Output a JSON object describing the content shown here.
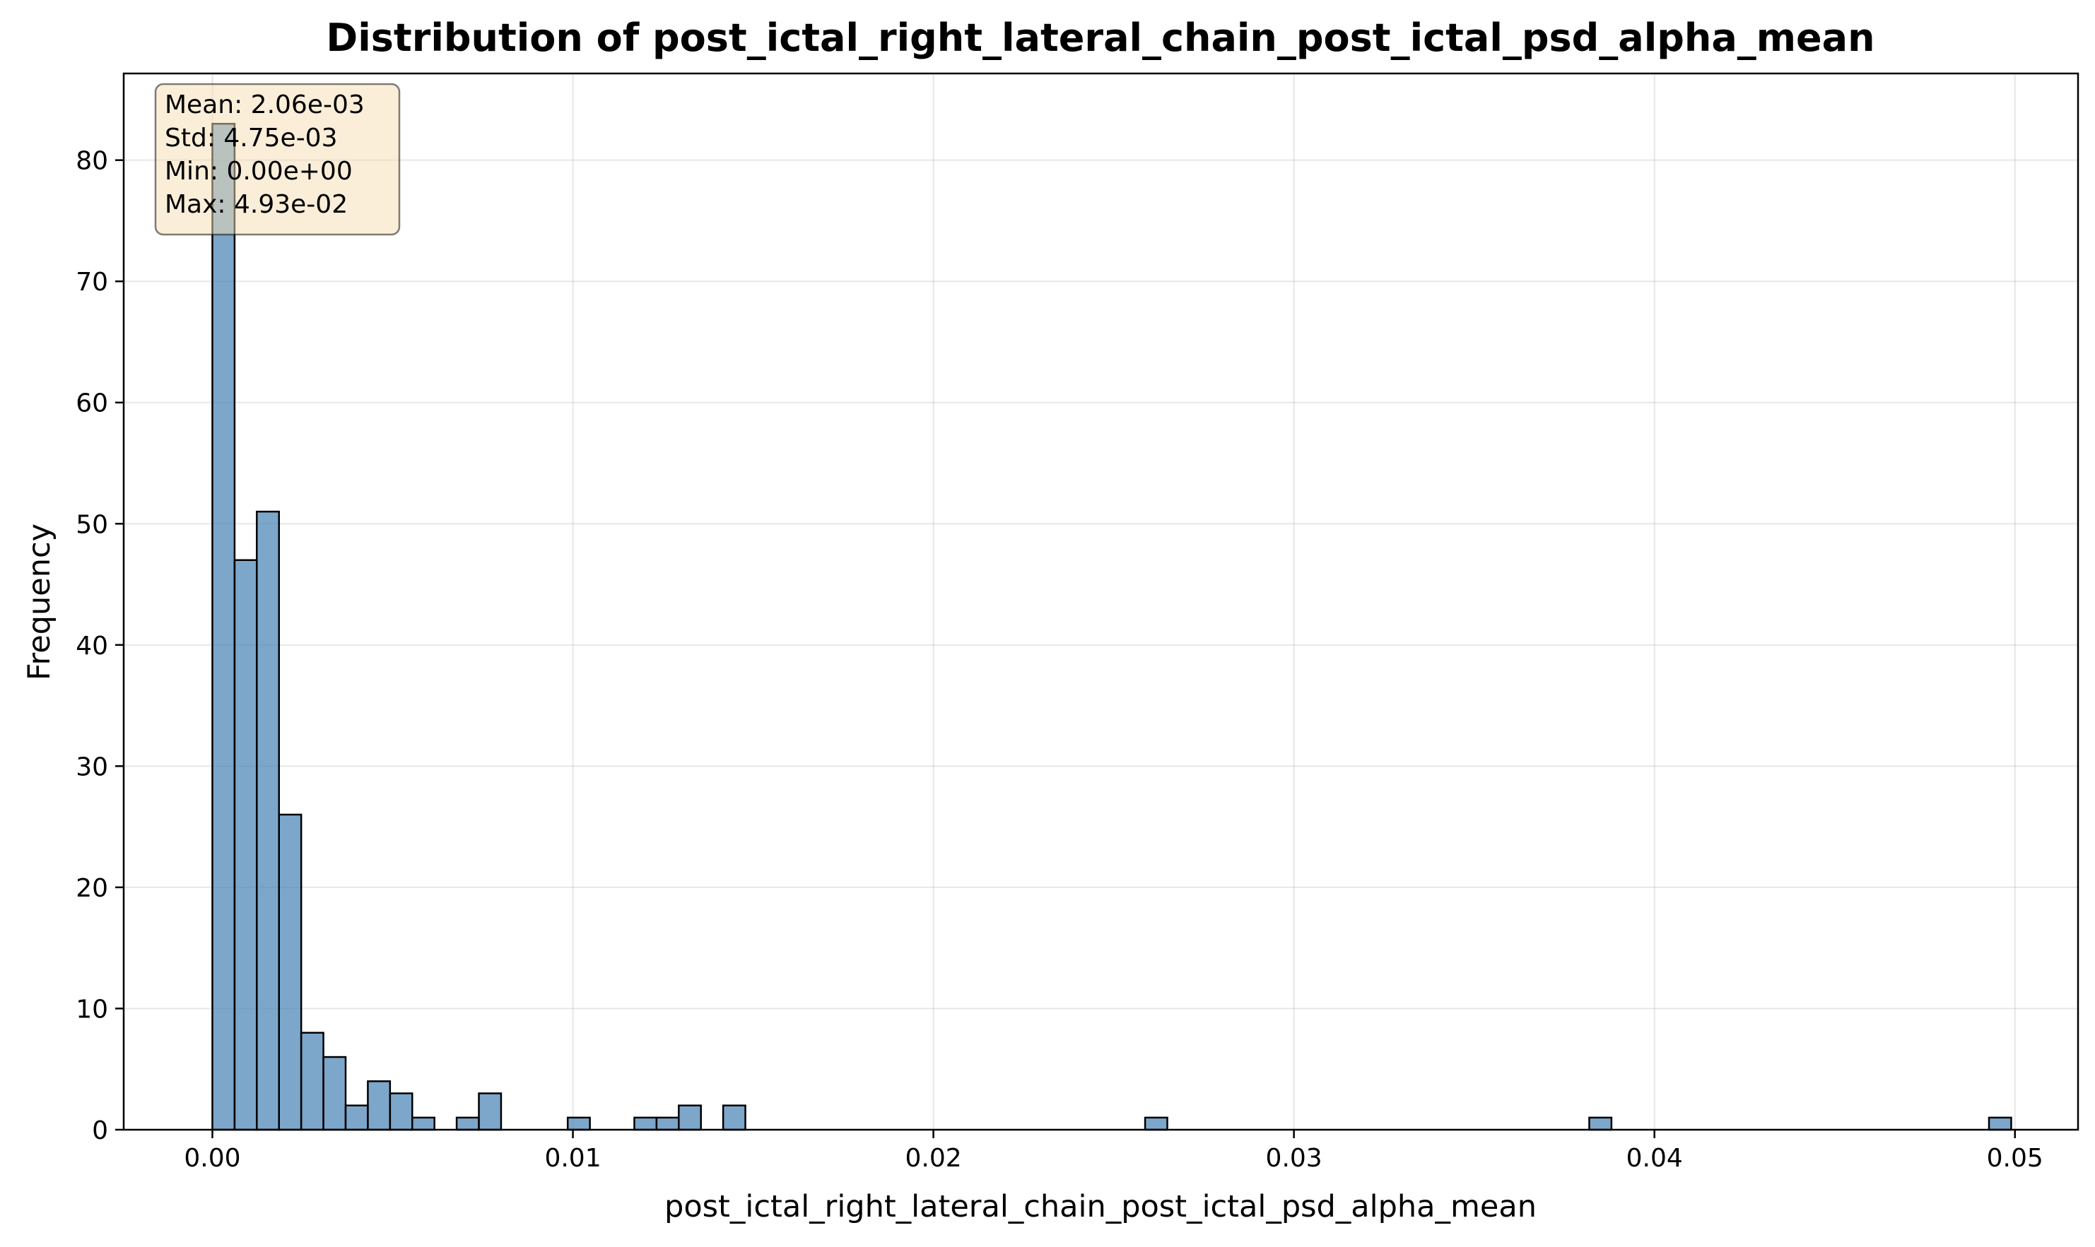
{
  "chart_data": {
    "type": "bar",
    "title": "Distribution of post_ictal_right_lateral_chain_post_ictal_psd_alpha_mean",
    "xlabel": "post_ictal_right_lateral_chain_post_ictal_psd_alpha_mean",
    "ylabel": "Frequency",
    "xlim": [
      -0.00246,
      0.05175
    ],
    "ylim": [
      0,
      87.15
    ],
    "xticks": [
      0.0,
      0.01,
      0.02,
      0.03,
      0.04,
      0.05
    ],
    "xtick_labels": [
      "0.00",
      "0.01",
      "0.02",
      "0.03",
      "0.04",
      "0.05"
    ],
    "yticks": [
      0,
      10,
      20,
      30,
      40,
      50,
      60,
      70,
      80
    ],
    "ytick_labels": [
      "0",
      "10",
      "20",
      "30",
      "40",
      "50",
      "60",
      "70",
      "80"
    ],
    "grid": true,
    "bar_color": "#4682b4",
    "bin_width": 0.000616,
    "bins": [
      {
        "x0": 0.0,
        "value": 83
      },
      {
        "x0": 0.000616,
        "value": 47
      },
      {
        "x0": 0.001232,
        "value": 51
      },
      {
        "x0": 0.001848,
        "value": 26
      },
      {
        "x0": 0.002464,
        "value": 8
      },
      {
        "x0": 0.00308,
        "value": 6
      },
      {
        "x0": 0.003696,
        "value": 2
      },
      {
        "x0": 0.004312,
        "value": 4
      },
      {
        "x0": 0.004928,
        "value": 3
      },
      {
        "x0": 0.005544,
        "value": 1
      },
      {
        "x0": 0.006776,
        "value": 1
      },
      {
        "x0": 0.007392,
        "value": 3
      },
      {
        "x0": 0.009856,
        "value": 1
      },
      {
        "x0": 0.011704,
        "value": 1
      },
      {
        "x0": 0.01232,
        "value": 1
      },
      {
        "x0": 0.012936,
        "value": 2
      },
      {
        "x0": 0.014168,
        "value": 2
      },
      {
        "x0": 0.025872,
        "value": 1
      },
      {
        "x0": 0.038192,
        "value": 1
      },
      {
        "x0": 0.04928,
        "value": 1
      }
    ],
    "stats_box": {
      "lines": [
        "Mean: 2.06e-03",
        "Std: 4.75e-03",
        "Min: 0.00e+00",
        "Max: 4.93e-02"
      ],
      "background": "#f5deb3"
    }
  }
}
